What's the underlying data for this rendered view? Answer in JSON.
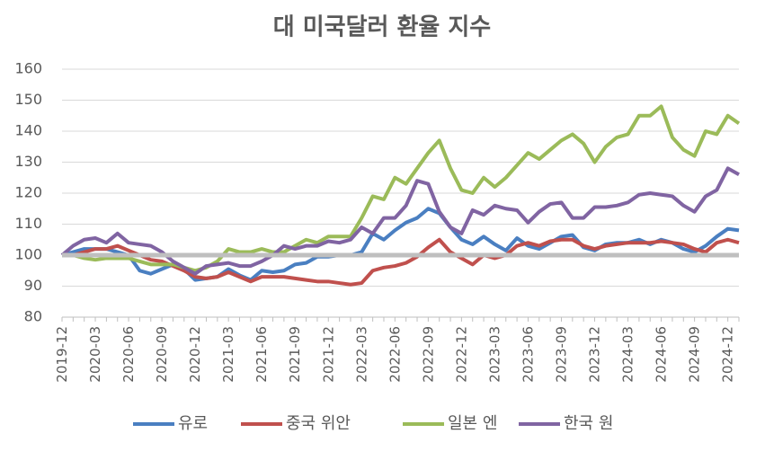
{
  "chart_data": {
    "type": "line",
    "title": "대 미국달러 환율 지수",
    "categories": [
      "2019-12",
      null,
      null,
      "2020-03",
      null,
      null,
      "2020-06",
      null,
      null,
      "2020-09",
      null,
      null,
      "2020-12",
      null,
      null,
      "2021-03",
      null,
      null,
      "2021-06",
      null,
      null,
      "2021-09",
      null,
      null,
      "2021-12",
      null,
      null,
      "2022-03",
      null,
      null,
      "2022-06",
      null,
      null,
      "2022-09",
      null,
      null,
      "2022-12",
      null,
      null,
      "2023-03",
      null,
      null,
      "2023-06",
      null,
      null,
      "2023-09",
      null,
      null,
      "2023-12",
      null,
      null,
      "2024-03",
      null,
      null,
      "2024-06",
      null,
      null,
      "2024-09",
      null,
      null,
      "2024-12",
      null
    ],
    "series": [
      {
        "name": "유로",
        "color": "#4a7fc1",
        "values": [
          100,
          101,
          102,
          102,
          102,
          101,
          100,
          95,
          94,
          95.5,
          97,
          95.5,
          92,
          92.5,
          93,
          95.5,
          93.5,
          92,
          95,
          94.5,
          95,
          97,
          97.5,
          99.5,
          99.5,
          100,
          100,
          101,
          107,
          105,
          108,
          110.5,
          112,
          115,
          113.5,
          109,
          105,
          103.5,
          106,
          103.5,
          101.5,
          105.5,
          103,
          102,
          104,
          106,
          106.5,
          102.5,
          101.5,
          103.5,
          104,
          104,
          105,
          103.5,
          105,
          104,
          102,
          101,
          103,
          106,
          108.5,
          108
        ]
      },
      {
        "name": "중국 위안",
        "color": "#c0504d",
        "values": [
          100,
          100,
          101,
          102,
          102,
          103,
          101.5,
          100,
          98.5,
          98,
          96.5,
          95,
          93,
          92.5,
          93,
          94.5,
          93,
          91.5,
          93,
          93,
          93,
          92.5,
          92,
          91.5,
          91.5,
          91,
          90.5,
          91,
          95,
          96,
          96.5,
          97.5,
          99.5,
          102.5,
          105,
          101,
          99,
          97,
          100,
          99,
          100,
          103,
          104,
          103,
          104.5,
          105,
          105,
          103,
          102,
          103,
          103.5,
          104,
          104,
          104,
          104.5,
          104,
          103.5,
          102,
          101,
          104,
          105,
          104
        ]
      },
      {
        "name": "일본 엔",
        "color": "#9bbb59",
        "values": [
          100,
          100,
          99,
          98.5,
          99,
          99,
          99,
          98,
          97,
          97,
          97,
          96,
          95,
          96,
          98,
          102,
          101,
          101,
          102,
          101,
          101,
          103,
          105,
          104,
          106,
          106,
          106,
          112,
          119,
          118,
          125,
          123,
          128,
          133,
          137,
          128,
          121,
          120,
          125,
          122,
          125,
          129,
          133,
          131,
          134,
          137,
          139,
          136,
          130,
          135,
          138,
          139,
          145,
          145,
          148,
          138,
          134,
          132,
          140,
          139,
          145,
          142.5
        ]
      },
      {
        "name": "한국 원",
        "color": "#8064a2",
        "values": [
          100,
          103,
          105,
          105.5,
          104,
          107,
          104,
          103.5,
          103,
          101,
          98,
          96,
          94,
          96.5,
          97,
          97.5,
          96.5,
          96.5,
          98,
          100,
          103,
          102,
          103,
          103,
          104.5,
          104,
          105,
          109,
          107,
          112,
          112,
          116,
          124,
          123,
          114,
          109,
          107,
          114.5,
          113,
          116,
          115,
          114.5,
          110.5,
          114,
          116.5,
          117,
          112,
          112,
          115.5,
          115.5,
          116,
          117,
          119.5,
          120,
          119.5,
          119,
          116,
          114,
          119,
          121,
          128,
          126
        ]
      }
    ],
    "reference_line": 100,
    "reference_color": "#bfbfbf",
    "ylim": [
      80,
      160
    ],
    "yticks": [
      80,
      90,
      100,
      110,
      120,
      130,
      140,
      150,
      160
    ],
    "grid": true
  }
}
